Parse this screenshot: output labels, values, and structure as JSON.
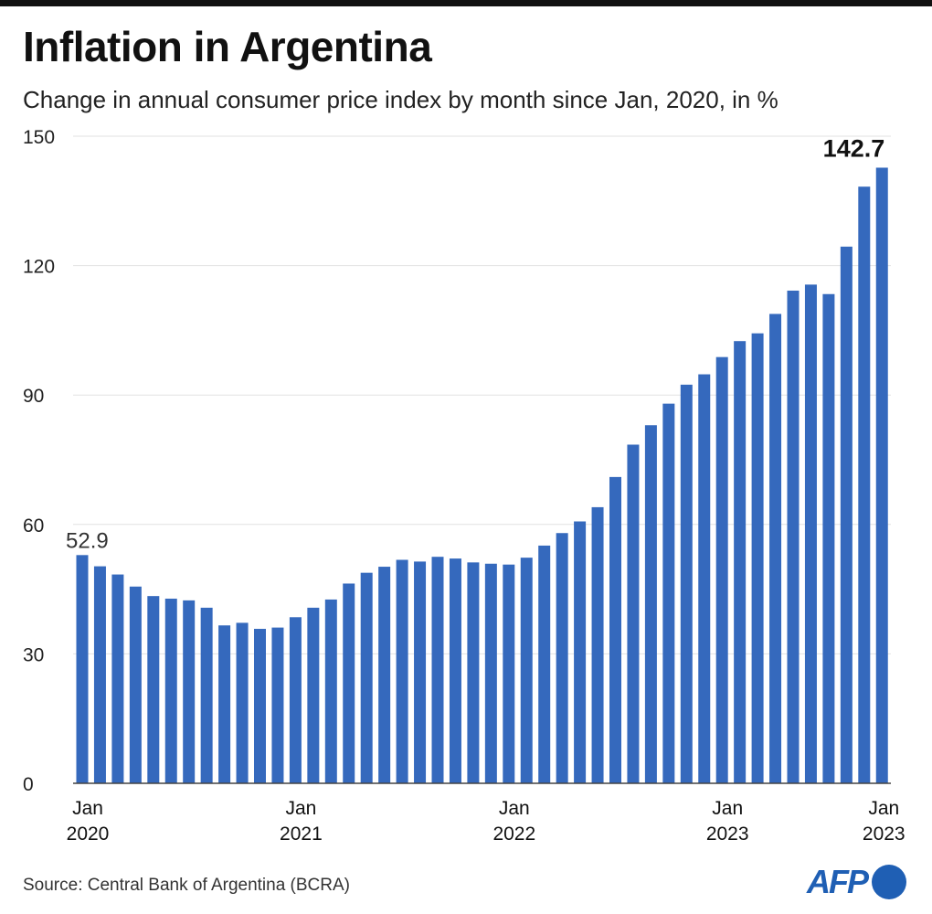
{
  "chart_data": {
    "type": "bar",
    "title": "Inflation in Argentina",
    "subtitle": "Change in annual consumer price index by month since Jan, 2020, in %",
    "ylim": [
      0,
      150
    ],
    "yticks": [
      0,
      30,
      60,
      90,
      120,
      150
    ],
    "grid": true,
    "bar_color": "#3569bd",
    "x_tick_labels": [
      {
        "index": 0,
        "line1": "Jan",
        "line2": "2020"
      },
      {
        "index": 12,
        "line1": "Jan",
        "line2": "2021"
      },
      {
        "index": 24,
        "line1": "Jan",
        "line2": "2022"
      },
      {
        "index": 36,
        "line1": "Jan",
        "line2": "2023"
      },
      {
        "index": 45,
        "line1": "Jan",
        "line2": "2023"
      }
    ],
    "values": [
      52.9,
      50.3,
      48.4,
      45.6,
      43.4,
      42.8,
      42.4,
      40.7,
      36.6,
      37.2,
      35.8,
      36.1,
      38.5,
      40.7,
      42.6,
      46.3,
      48.8,
      50.2,
      51.8,
      51.4,
      52.5,
      52.1,
      51.2,
      50.9,
      50.7,
      52.3,
      55.1,
      58.0,
      60.7,
      64.0,
      71.0,
      78.5,
      83.0,
      88.0,
      92.4,
      94.8,
      98.8,
      102.5,
      104.3,
      108.8,
      114.2,
      115.6,
      113.4,
      124.4,
      138.3,
      142.7
    ],
    "annotations": [
      {
        "index": 0,
        "text": "52.9",
        "bold": false
      },
      {
        "index": 45,
        "text": "142.7",
        "bold": true
      }
    ]
  },
  "source": "Source: Central Bank of Argentina (BCRA)",
  "logo": "AFP"
}
